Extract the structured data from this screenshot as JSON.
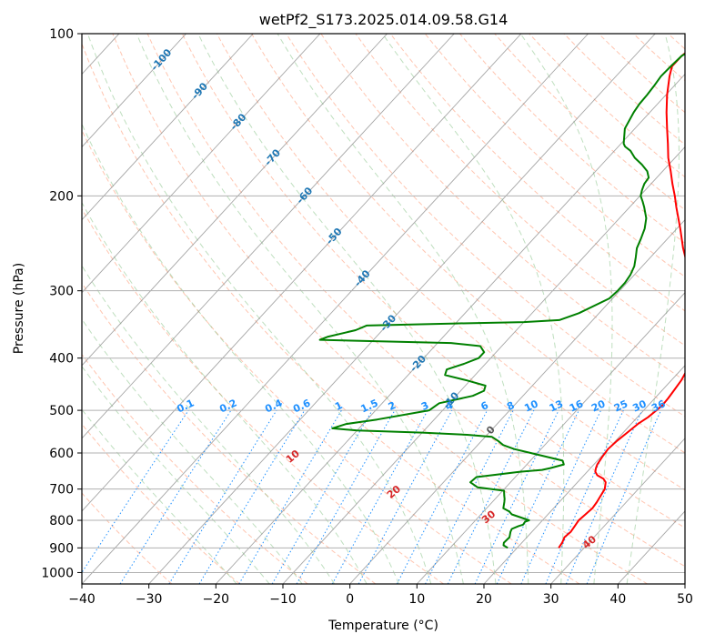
{
  "chart_data": {
    "type": "line",
    "title": "wetPf2_S173.2025.014.09.58.G14",
    "xlabel": "Temperature (°C)",
    "ylabel": "Pressure (hPa)",
    "xlim": [
      -40,
      50
    ],
    "ylim": [
      1050,
      100
    ],
    "y_scale": "log",
    "grid": true,
    "x_ticks": [
      "−40",
      "−30",
      "−20",
      "−10",
      "0",
      "10",
      "20",
      "30",
      "40",
      "50"
    ],
    "y_ticks": [
      {
        "p": 100,
        "label": "100"
      },
      {
        "p": 200,
        "label": "200"
      },
      {
        "p": 300,
        "label": "300"
      },
      {
        "p": 400,
        "label": "400"
      },
      {
        "p": 500,
        "label": "500"
      },
      {
        "p": 600,
        "label": "600"
      },
      {
        "p": 700,
        "label": "700"
      },
      {
        "p": 800,
        "label": "800"
      },
      {
        "p": 900,
        "label": "900"
      },
      {
        "p": 1000,
        "label": "1000"
      }
    ],
    "colors": {
      "temperature": "#ff0000",
      "dewpoint": "#008000",
      "mixing_ratio": "#1e90ff",
      "isotherm_label": "#1f77b4",
      "dry_adiabat": "#ff7f50",
      "moist_adiabat": "#7fbf7f",
      "saturation": "#d2b48c",
      "skew_isotherm": "#888888",
      "grid": "#b0b0b0",
      "dry_adiabat_label": "#d62728"
    },
    "series": [
      {
        "key": "temperature",
        "points": [
          [
            900,
            26.2
          ],
          [
            880,
            26.0
          ],
          [
            860,
            25.6
          ],
          [
            840,
            25.8
          ],
          [
            820,
            25.6
          ],
          [
            800,
            25.4
          ],
          [
            780,
            25.6
          ],
          [
            760,
            25.8
          ],
          [
            740,
            25.6
          ],
          [
            720,
            25.3
          ],
          [
            700,
            25.0
          ],
          [
            690,
            24.6
          ],
          [
            680,
            24.2
          ],
          [
            670,
            23.4
          ],
          [
            660,
            22.0
          ],
          [
            650,
            21.2
          ],
          [
            640,
            20.8
          ],
          [
            630,
            20.5
          ],
          [
            610,
            20.2
          ],
          [
            590,
            20.0
          ],
          [
            570,
            20.2
          ],
          [
            550,
            20.6
          ],
          [
            530,
            21.0
          ],
          [
            515,
            21.6
          ],
          [
            500,
            21.9
          ],
          [
            490,
            22.1
          ],
          [
            475,
            22.0
          ],
          [
            460,
            21.8
          ],
          [
            440,
            21.5
          ],
          [
            420,
            20.9
          ],
          [
            400,
            19.8
          ],
          [
            380,
            18.4
          ],
          [
            365,
            17.5
          ],
          [
            350,
            16.0
          ],
          [
            340,
            14.5
          ],
          [
            330,
            13.2
          ],
          [
            310,
            11.6
          ],
          [
            300,
            10.6
          ],
          [
            280,
            8.0
          ],
          [
            260,
            5.2
          ],
          [
            250,
            3.6
          ],
          [
            230,
            0.5
          ],
          [
            210,
            -3.0
          ],
          [
            200,
            -4.8
          ],
          [
            190,
            -6.8
          ],
          [
            180,
            -8.8
          ],
          [
            170,
            -11.0
          ],
          [
            160,
            -13.0
          ],
          [
            150,
            -15.2
          ],
          [
            140,
            -17.5
          ],
          [
            130,
            -19.8
          ],
          [
            120,
            -22.0
          ],
          [
            115,
            -23.0
          ],
          [
            110,
            -23.0
          ],
          [
            105,
            -22.5
          ],
          [
            100,
            -21.0
          ]
        ]
      },
      {
        "key": "dewpoint",
        "points": [
          [
            900,
            18.6
          ],
          [
            890,
            17.6
          ],
          [
            880,
            17.3
          ],
          [
            860,
            17.4
          ],
          [
            840,
            16.8
          ],
          [
            830,
            16.6
          ],
          [
            820,
            17.2
          ],
          [
            815,
            17.7
          ],
          [
            805,
            17.6
          ],
          [
            800,
            18.0
          ],
          [
            780,
            14.6
          ],
          [
            770,
            13.8
          ],
          [
            760,
            12.5
          ],
          [
            740,
            11.8
          ],
          [
            730,
            11.4
          ],
          [
            720,
            10.9
          ],
          [
            705,
            10.2
          ],
          [
            695,
            5.8
          ],
          [
            680,
            4.0
          ],
          [
            665,
            4.2
          ],
          [
            650,
            10.0
          ],
          [
            645,
            13.0
          ],
          [
            640,
            14.0
          ],
          [
            630,
            15.5
          ],
          [
            620,
            14.8
          ],
          [
            600,
            9.0
          ],
          [
            590,
            6.0
          ],
          [
            580,
            3.8
          ],
          [
            570,
            2.5
          ],
          [
            560,
            1.0
          ],
          [
            555,
            -3.0
          ],
          [
            550,
            -10.0
          ],
          [
            545,
            -20.0
          ],
          [
            540,
            -24.0
          ],
          [
            530,
            -22.5
          ],
          [
            520,
            -18.5
          ],
          [
            500,
            -12.0
          ],
          [
            485,
            -11.5
          ],
          [
            470,
            -7.5
          ],
          [
            460,
            -6.5
          ],
          [
            450,
            -7.0
          ],
          [
            440,
            -10.5
          ],
          [
            430,
            -14.5
          ],
          [
            420,
            -15.0
          ],
          [
            410,
            -13.2
          ],
          [
            400,
            -11.8
          ],
          [
            390,
            -11.8
          ],
          [
            380,
            -13.2
          ],
          [
            375,
            -18.0
          ],
          [
            370,
            -38.0
          ],
          [
            365,
            -37.2
          ],
          [
            355,
            -34.0
          ],
          [
            348,
            -33.0
          ],
          [
            345,
            -20.0
          ],
          [
            343,
            -10.0
          ],
          [
            340,
            -5.0
          ],
          [
            330,
            -3.0
          ],
          [
            310,
            -0.5
          ],
          [
            300,
            -0.3
          ],
          [
            290,
            -0.3
          ],
          [
            280,
            -0.6
          ],
          [
            270,
            -1.2
          ],
          [
            260,
            -2.2
          ],
          [
            250,
            -3.3
          ],
          [
            240,
            -4.0
          ],
          [
            230,
            -4.8
          ],
          [
            220,
            -6.0
          ],
          [
            210,
            -7.8
          ],
          [
            205,
            -8.8
          ],
          [
            200,
            -9.9
          ],
          [
            195,
            -10.5
          ],
          [
            190,
            -11.0
          ],
          [
            185,
            -11.2
          ],
          [
            180,
            -12.3
          ],
          [
            175,
            -14.0
          ],
          [
            170,
            -16.0
          ],
          [
            165,
            -17.6
          ],
          [
            162,
            -19.0
          ],
          [
            160,
            -19.6
          ],
          [
            150,
            -21.5
          ],
          [
            140,
            -22.4
          ],
          [
            135,
            -22.7
          ],
          [
            130,
            -22.8
          ],
          [
            125,
            -23.0
          ],
          [
            120,
            -23.3
          ],
          [
            115,
            -23.2
          ],
          [
            110,
            -23.0
          ],
          [
            106,
            -22.0
          ],
          [
            103,
            -21.0
          ],
          [
            100,
            -20.5
          ]
        ]
      }
    ],
    "isotherm_labels": [
      -100,
      -90,
      -80,
      -70,
      -60,
      -50,
      -40,
      -30,
      -20,
      -10,
      0
    ],
    "isotherm_label_text": [
      "-100",
      "-90",
      "-80",
      "-70",
      "-60",
      "-50",
      "-40",
      "-30",
      "-20",
      "-10",
      "0"
    ],
    "dry_adiabat_labels": [
      10,
      20,
      30,
      40
    ],
    "dry_adiabat_label_text": [
      "10",
      "20",
      "30",
      "40"
    ],
    "mixing_ratio_values": [
      0.1,
      0.2,
      0.4,
      0.6,
      1,
      1.5,
      2,
      3,
      4,
      6,
      8,
      10,
      13,
      16,
      20,
      25,
      30,
      36
    ],
    "mixing_ratio_labels": [
      "0.1",
      "0.2",
      "0.4",
      "0.6",
      "1",
      "1.5",
      "2",
      "3",
      "4",
      "6",
      "8",
      "10",
      "13",
      "16",
      "20",
      "25",
      "30",
      "36"
    ]
  }
}
